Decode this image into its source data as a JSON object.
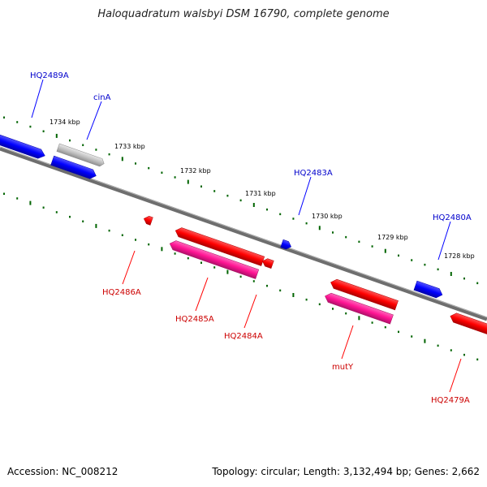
{
  "title": "Haloquadratum walsbyi DSM 16790, complete genome",
  "footer": {
    "accession": "Accession: NC_008212",
    "topology": "Topology: circular; Length: 3,132,494 bp; Genes: 2,662"
  },
  "scale_labels": [
    "1734 kbp",
    "1733 kbp",
    "1732 kbp",
    "1731 kbp",
    "1730 kbp",
    "1729 kbp",
    "1728 kbp"
  ],
  "genes_forward": [
    {
      "id": "hq2489a",
      "label": "HQ2489A",
      "color": "#0000ff"
    },
    {
      "id": "cina",
      "label": "cinA",
      "color": "#0000ff"
    },
    {
      "id": "hq2483a",
      "label": "HQ2483A",
      "color": "#0000ff"
    },
    {
      "id": "hq2480a",
      "label": "HQ2480A",
      "color": "#0000ff"
    }
  ],
  "genes_reverse": [
    {
      "id": "hq2486a",
      "label": "HQ2486A",
      "color": "#ff0000"
    },
    {
      "id": "hq2485a",
      "label": "HQ2485A",
      "color": "#ff0000"
    },
    {
      "id": "hq2484a",
      "label": "HQ2484A",
      "color": "#ff0000"
    },
    {
      "id": "muty",
      "label": "mutY",
      "color": "#ff0000"
    },
    {
      "id": "hq2479a",
      "label": "HQ2479A",
      "color": "#ff0000"
    }
  ],
  "colors": {
    "backbone": "#808080",
    "forward_gene": "#0000ff",
    "reverse_gene": "#ff0000",
    "reverse_cds": "#ff1493",
    "pseudo_gene": "#c0c0c0",
    "ruler": "#006400",
    "forward_label": "#0000cc",
    "reverse_label": "#cc0000"
  }
}
